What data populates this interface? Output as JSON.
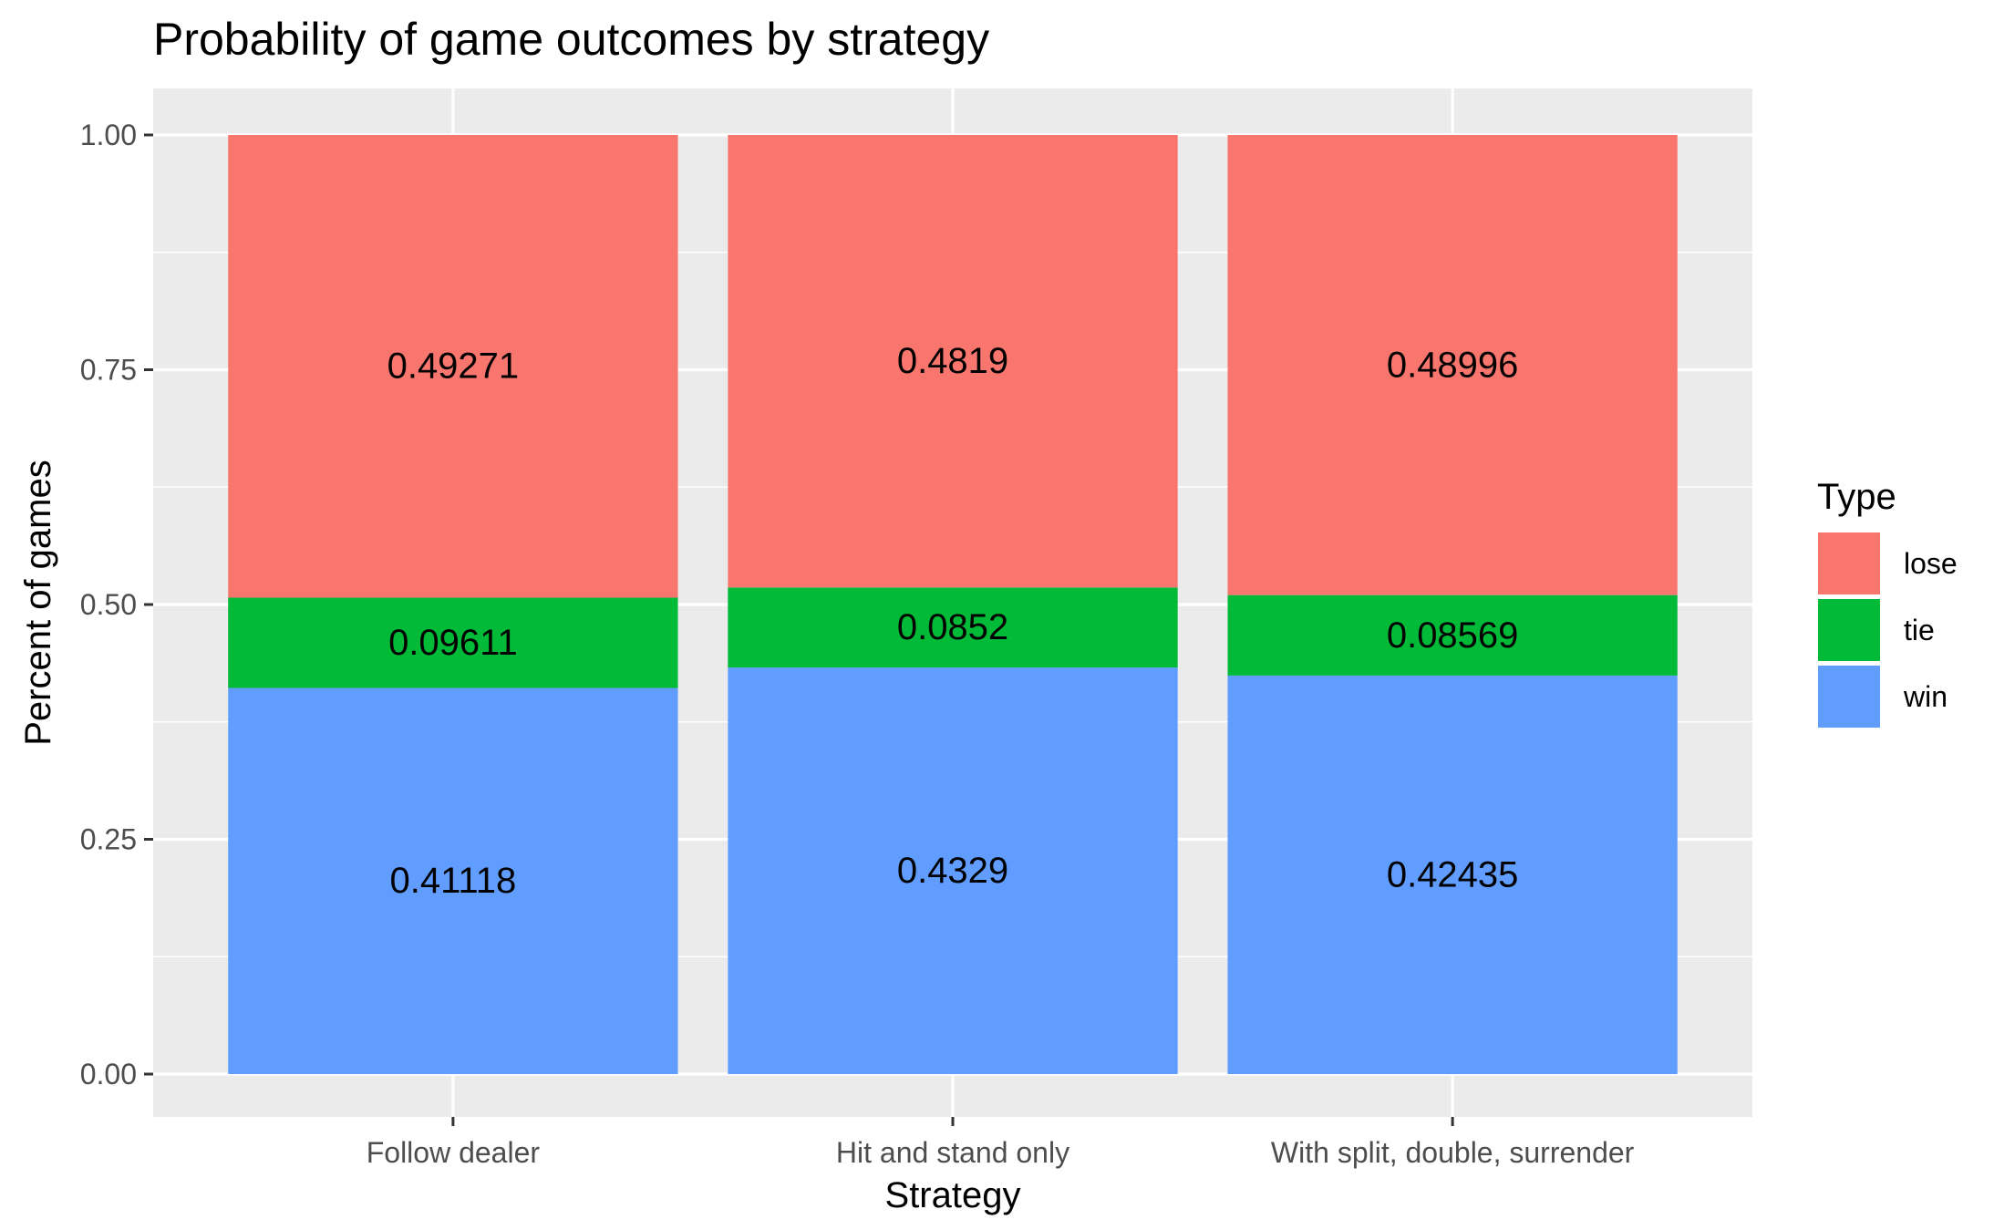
{
  "chart_data": {
    "type": "bar",
    "stacked": true,
    "title": "Probability of game outcomes by strategy",
    "xlabel": "Strategy",
    "ylabel": "Percent of games",
    "ylim": [
      0,
      1
    ],
    "yticks": [
      0,
      0.25,
      0.5,
      0.75,
      1
    ],
    "ytick_labels": [
      "0.00",
      "0.25",
      "0.50",
      "0.75",
      "1.00"
    ],
    "categories": [
      "Follow dealer",
      "Hit and stand only",
      "With split, double, surrender"
    ],
    "series": [
      {
        "name": "win",
        "values": [
          0.41118,
          0.4329,
          0.42435
        ],
        "labels": [
          "0.41118",
          "0.4329",
          "0.42435"
        ],
        "color": "#619CFF"
      },
      {
        "name": "tie",
        "values": [
          0.09611,
          0.0852,
          0.08569
        ],
        "labels": [
          "0.09611",
          "0.0852",
          "0.08569"
        ],
        "color": "#00BA38"
      },
      {
        "name": "lose",
        "values": [
          0.49271,
          0.4819,
          0.48996
        ],
        "labels": [
          "0.49271",
          "0.4819",
          "0.48996"
        ],
        "color": "#F8766D"
      }
    ],
    "legend": {
      "title": "Type",
      "position": "right",
      "order": [
        "lose",
        "tie",
        "win"
      ]
    },
    "grid": true,
    "panel_background": "#EBEBEB",
    "grid_color": "#FFFFFF"
  }
}
